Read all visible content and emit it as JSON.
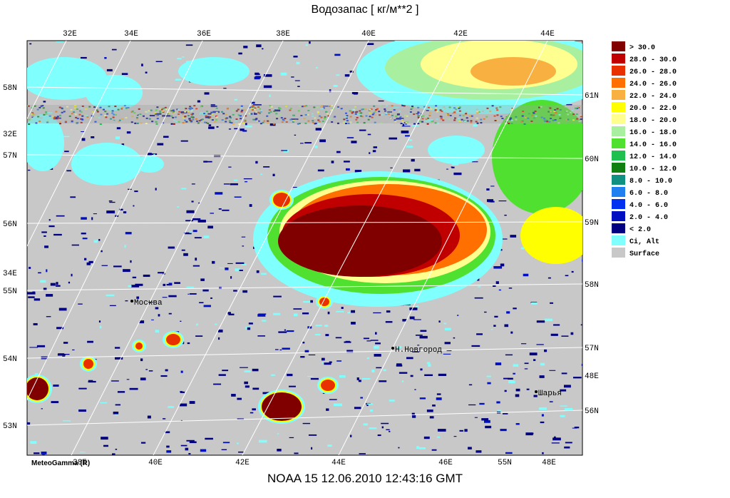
{
  "title": "Водозапас [ кг/м**2 ]",
  "footer": "NOAA 15  12.06.2010  12:43:16 GMT",
  "credit": "MeteoGamma (R)",
  "top_labels": [
    "32E",
    "34E",
    "36E",
    "38E",
    "40E",
    "42E",
    "44E"
  ],
  "left_labels": [
    "58N",
    "32E",
    "57N",
    "56N",
    "34E",
    "55N",
    "54N",
    "53N"
  ],
  "right_labels": [
    "61N",
    "60N",
    "59N",
    "58N",
    "57N",
    "48E",
    "56N"
  ],
  "bottom_labels": [
    "38E",
    "40E",
    "42E",
    "44E",
    "46E",
    "55N",
    "48E"
  ],
  "cities": [
    "Москва",
    "Н.Новгород",
    "Шарья"
  ],
  "legend": [
    {
      "label": ">  30.0",
      "color": "#800000"
    },
    {
      "label": "28.0 -  30.0",
      "color": "#c00000"
    },
    {
      "label": "26.0 -  28.0",
      "color": "#e83000"
    },
    {
      "label": "24.0 -  26.0",
      "color": "#ff7000"
    },
    {
      "label": "22.0 -  24.0",
      "color": "#f8b040"
    },
    {
      "label": "20.0 -  22.0",
      "color": "#ffff00"
    },
    {
      "label": "18.0 -  20.0",
      "color": "#ffff90"
    },
    {
      "label": "16.0 -  18.0",
      "color": "#a8f0a0"
    },
    {
      "label": "14.0 -  16.0",
      "color": "#50e030"
    },
    {
      "label": "12.0 -  14.0",
      "color": "#20c050"
    },
    {
      "label": "10.0 -  12.0",
      "color": "#108010"
    },
    {
      "label": "8.0 -  10.0",
      "color": "#109080"
    },
    {
      "label": "6.0 -   8.0",
      "color": "#2080f0"
    },
    {
      "label": "4.0 -   6.0",
      "color": "#0030f0"
    },
    {
      "label": "2.0 -   4.0",
      "color": "#0010c0"
    },
    {
      "label": "<   2.0",
      "color": "#000080"
    },
    {
      "label": "Ci, Alt",
      "color": "#80ffff"
    },
    {
      "label": "Surface",
      "color": "#c8c8c8"
    }
  ]
}
